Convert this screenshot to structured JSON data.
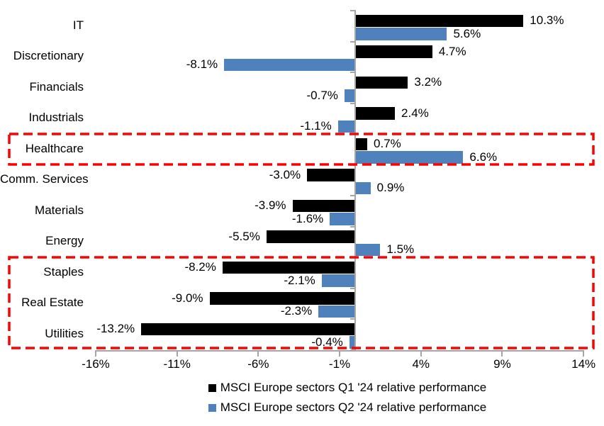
{
  "chart_data": {
    "type": "bar",
    "orientation": "horizontal",
    "categories": [
      "IT",
      "Discretionary",
      "Financials",
      "Industrials",
      "Healthcare",
      "Comm. Services",
      "Materials",
      "Energy",
      "Staples",
      "Real Estate",
      "Utilities"
    ],
    "series": [
      {
        "name": "MSCI Europe sectors Q1 '24 relative performance",
        "color": "#000000",
        "values": [
          10.3,
          4.7,
          3.2,
          2.4,
          0.7,
          -3.0,
          -3.9,
          -5.5,
          -8.2,
          -9.0,
          -13.2
        ]
      },
      {
        "name": "MSCI Europe sectors Q2 '24 relative performance",
        "color": "#4F81BD",
        "values": [
          5.6,
          -8.1,
          -0.7,
          -1.1,
          6.6,
          0.9,
          -1.6,
          1.5,
          -2.1,
          -2.3,
          -0.4
        ]
      }
    ],
    "value_label_format": "0.0%",
    "x_axis": {
      "tick_labels": [
        "-16%",
        "-11%",
        "-6%",
        "-1%",
        "4%",
        "9%",
        "14%"
      ],
      "tick_values": [
        -16,
        -11,
        -6,
        -1,
        4,
        9,
        14
      ],
      "range": [
        -16,
        14
      ]
    },
    "grid": false,
    "legend_position": "bottom",
    "axis_color": "#a6a6a6",
    "highlight_color": "#FF0000",
    "highlights": [
      {
        "categories": [
          "Healthcare"
        ]
      },
      {
        "categories": [
          "Staples",
          "Real Estate",
          "Utilities"
        ]
      }
    ]
  }
}
